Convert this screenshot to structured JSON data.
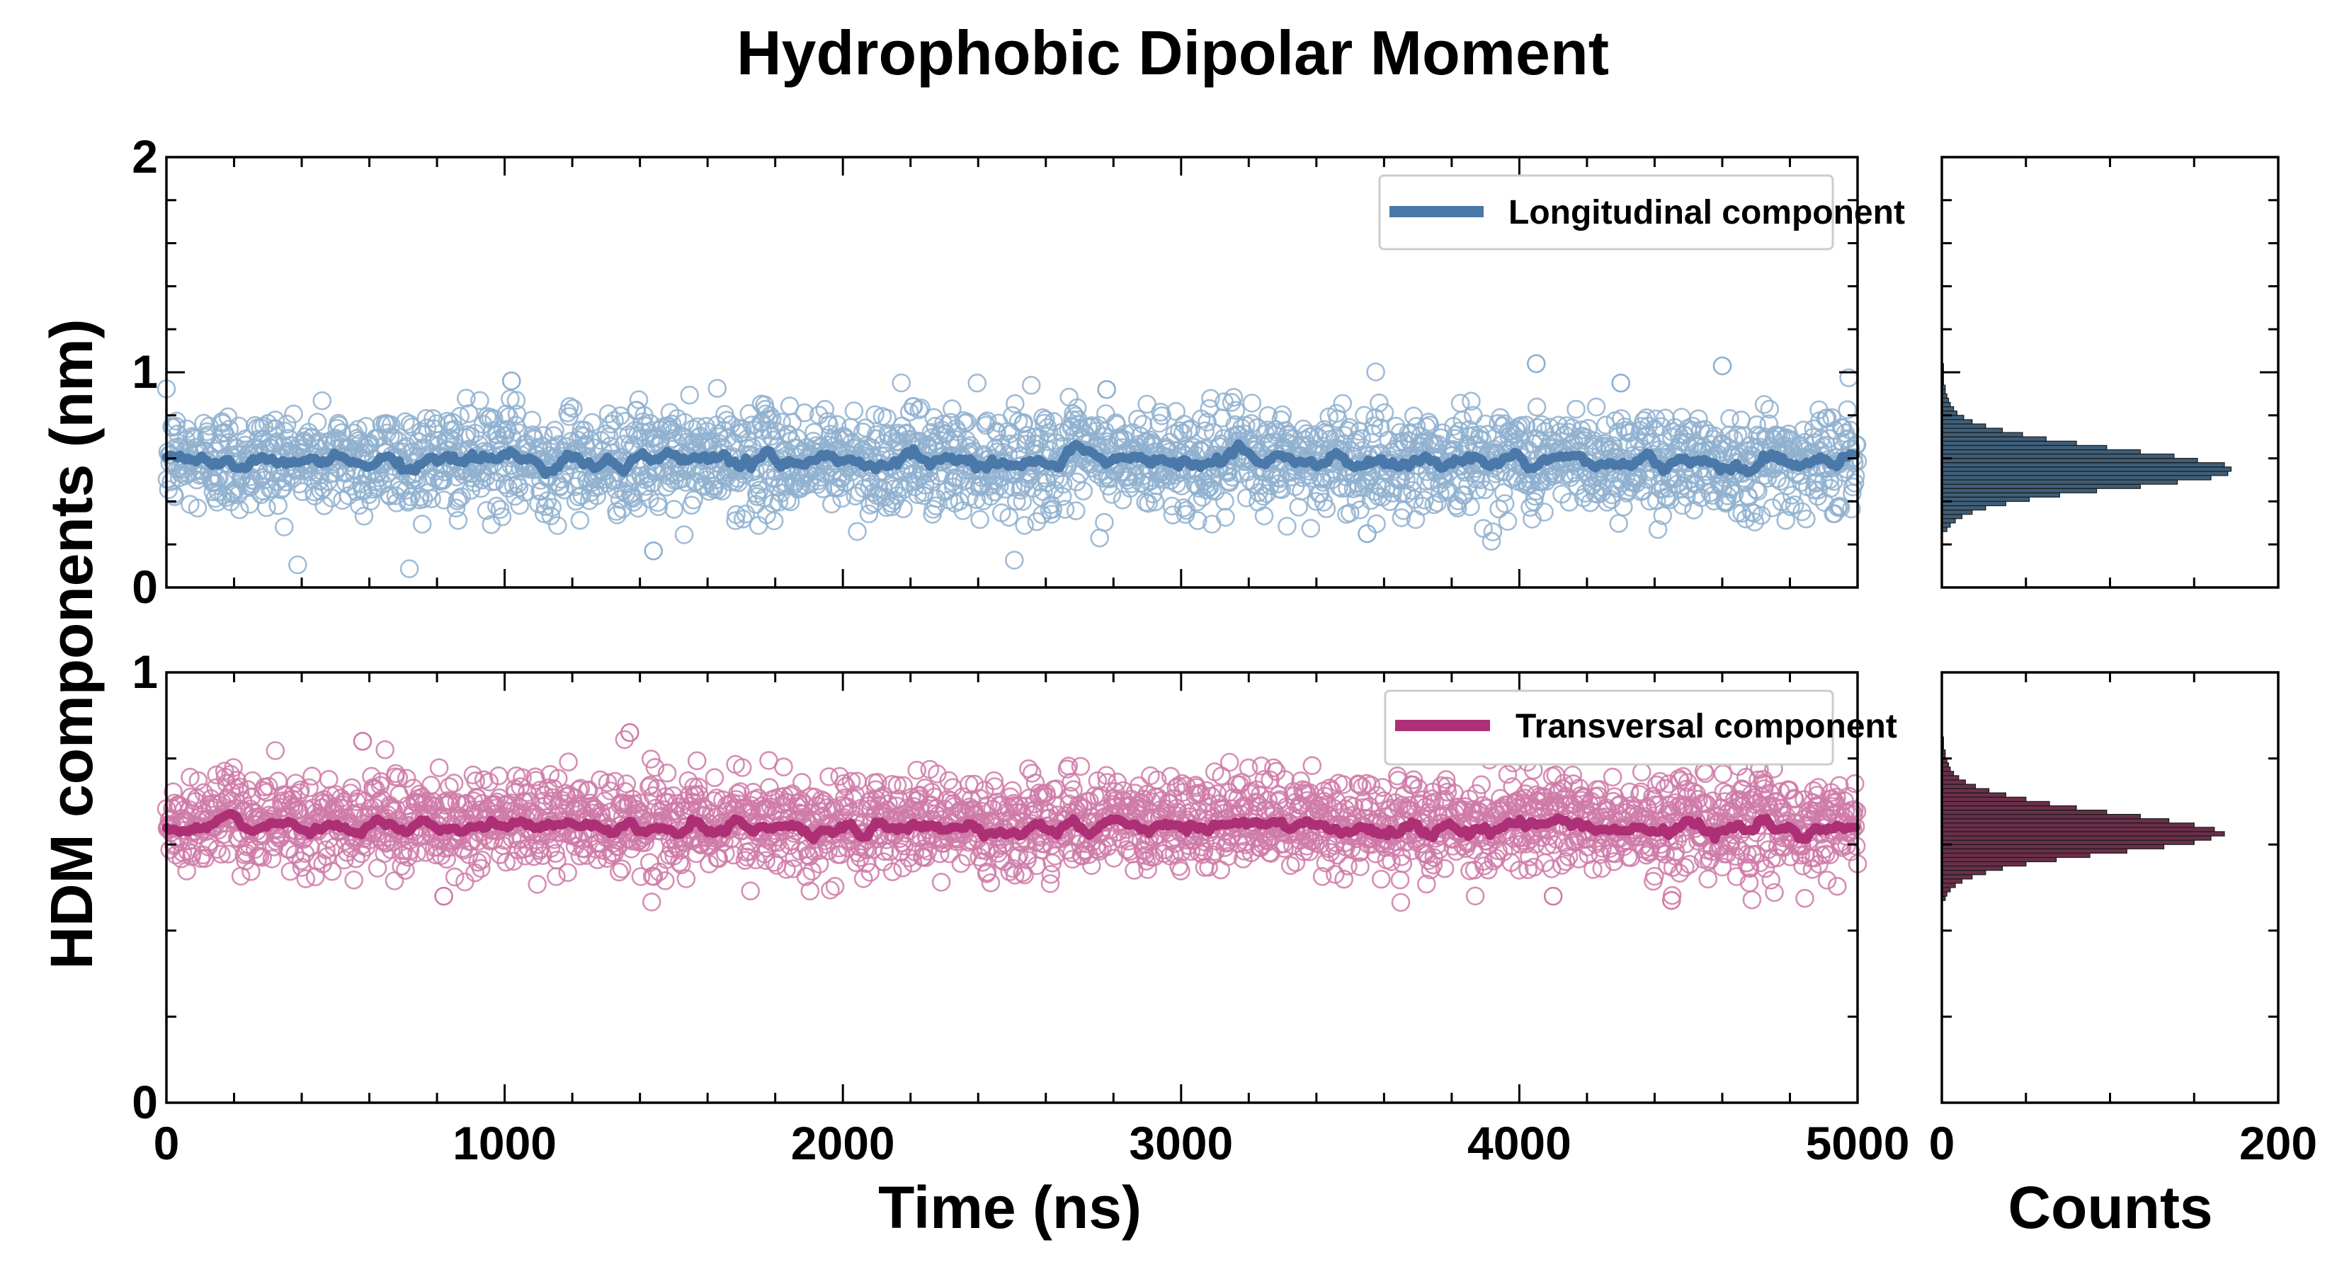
{
  "title": "Hydrophobic Dipolar Moment",
  "ylabel": "HDM components (nm)",
  "colors": {
    "longitudinal": "#4a78a8",
    "longitudinal_scatter": "#8fb0cf",
    "transversal": "#ad2f75",
    "transversal_scatter": "#cf7aa8",
    "hist_long": "#3e5e78",
    "hist_trans": "#6b2f4a"
  },
  "chart_data": [
    {
      "id": "longitudinal",
      "type": "scatter",
      "legend": "Longitudinal component",
      "legend_position": "upper right",
      "xlim": [
        0,
        5000
      ],
      "ylim": [
        0,
        2
      ],
      "yticks": [
        "0",
        "1",
        "2"
      ],
      "xticks": [],
      "n_points": 2500,
      "mean": 0.59,
      "std": 0.12,
      "running_mean_level": 0.59,
      "outliers": [
        {
          "x": 1020,
          "y": 0.96
        },
        {
          "x": 1440,
          "y": 0.17
        },
        {
          "x": 4050,
          "y": 1.04
        },
        {
          "x": 4600,
          "y": 1.03
        },
        {
          "x": 4300,
          "y": 0.95
        },
        {
          "x": 2780,
          "y": 0.92
        },
        {
          "x": 3550,
          "y": 0.25
        }
      ]
    },
    {
      "id": "transversal",
      "type": "scatter",
      "legend": "Transversal component",
      "legend_position": "upper right",
      "xlim": [
        0,
        5000
      ],
      "ylim": [
        0,
        1
      ],
      "yticks": [
        "0",
        "1"
      ],
      "xticks": [
        "0",
        "1000",
        "2000",
        "3000",
        "4000",
        "5000"
      ],
      "xlabel": "Time (ns)",
      "n_points": 2500,
      "mean": 0.65,
      "std": 0.055,
      "running_mean_level": 0.64,
      "outliers": [
        {
          "x": 1370,
          "y": 0.86
        },
        {
          "x": 580,
          "y": 0.84
        },
        {
          "x": 820,
          "y": 0.48
        },
        {
          "x": 4100,
          "y": 0.48
        },
        {
          "x": 4450,
          "y": 0.47
        }
      ]
    },
    {
      "id": "hist_longitudinal",
      "type": "bar",
      "orientation": "horizontal",
      "xlim": [
        0,
        200
      ],
      "ylim": [
        0,
        2
      ],
      "bin_centers": [
        0.27,
        0.29,
        0.31,
        0.33,
        0.35,
        0.37,
        0.39,
        0.41,
        0.43,
        0.45,
        0.47,
        0.49,
        0.51,
        0.53,
        0.55,
        0.57,
        0.59,
        0.61,
        0.63,
        0.65,
        0.67,
        0.69,
        0.71,
        0.73,
        0.75,
        0.77,
        0.79,
        0.81,
        0.83,
        0.85,
        0.87,
        0.89,
        0.91,
        0.93,
        0.95,
        0.97,
        0.99,
        1.01,
        1.03
      ],
      "counts": [
        3,
        5,
        8,
        12,
        18,
        26,
        38,
        52,
        70,
        92,
        118,
        140,
        160,
        170,
        172,
        168,
        152,
        138,
        118,
        98,
        80,
        62,
        48,
        36,
        26,
        18,
        13,
        9,
        7,
        5,
        4,
        3,
        2,
        2,
        1,
        1,
        1,
        1,
        1
      ]
    },
    {
      "id": "hist_transversal",
      "type": "bar",
      "orientation": "horizontal",
      "xlim": [
        0,
        200
      ],
      "xticks": [
        "0",
        "200"
      ],
      "xlabel": "Counts",
      "ylim": [
        0,
        1
      ],
      "bin_centers": [
        0.475,
        0.485,
        0.495,
        0.505,
        0.515,
        0.525,
        0.535,
        0.545,
        0.555,
        0.565,
        0.575,
        0.585,
        0.595,
        0.605,
        0.615,
        0.625,
        0.635,
        0.645,
        0.655,
        0.665,
        0.675,
        0.685,
        0.695,
        0.705,
        0.715,
        0.725,
        0.735,
        0.745,
        0.755,
        0.765,
        0.775,
        0.785,
        0.795,
        0.805,
        0.815,
        0.825,
        0.835,
        0.845
      ],
      "counts": [
        2,
        3,
        5,
        8,
        12,
        18,
        26,
        36,
        50,
        68,
        88,
        110,
        132,
        150,
        160,
        168,
        162,
        150,
        135,
        118,
        98,
        80,
        64,
        50,
        38,
        28,
        20,
        14,
        10,
        7,
        5,
        4,
        3,
        2,
        2,
        1,
        1,
        1
      ]
    }
  ]
}
